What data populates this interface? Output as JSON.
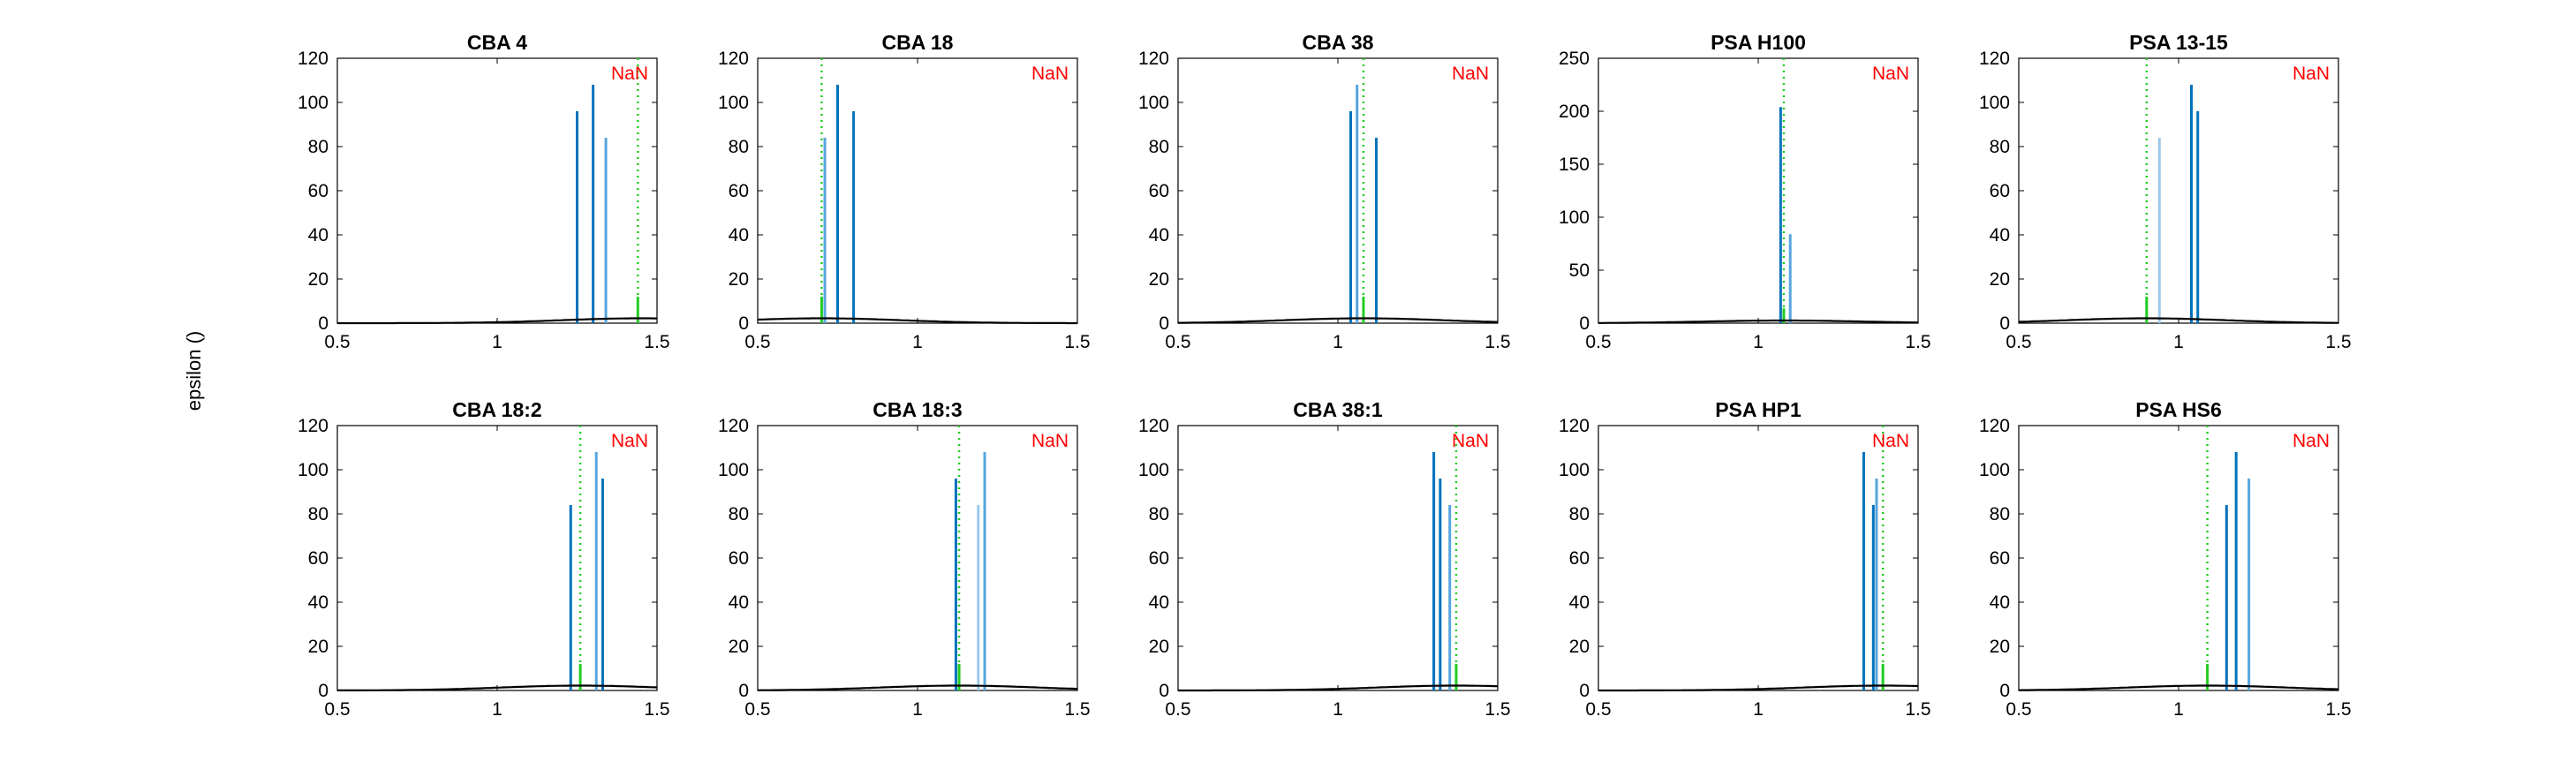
{
  "figure": {
    "ylabel": "epsilon ()",
    "colors": {
      "bar_dark": "#0072BD",
      "bar_light": "#56a5dd",
      "bar_pale": "#9cc8ea",
      "threshold_line": "#22cc22",
      "nan_text": "#ff0000",
      "curve": "#000000",
      "axes": "#000000"
    }
  },
  "chart_data": [
    {
      "type": "bar",
      "title": "CBA 4",
      "annotation": "NaN",
      "xlim": [
        0.5,
        1.5
      ],
      "ylim": [
        0,
        120
      ],
      "xticks": [
        0.5,
        1,
        1.5
      ],
      "xtick_labels": [
        "0.5",
        "1",
        "1.5"
      ],
      "yticks": [
        0,
        20,
        40,
        60,
        80,
        100,
        120
      ],
      "ytick_labels": [
        "0",
        "20",
        "40",
        "60",
        "80",
        "100",
        "120"
      ],
      "bars": [
        {
          "x": 1.25,
          "y": 96,
          "shade": "dark"
        },
        {
          "x": 1.3,
          "y": 108,
          "shade": "dark"
        },
        {
          "x": 1.34,
          "y": 84,
          "shade": "light"
        },
        {
          "x": 1.44,
          "y": 12,
          "shade": "green"
        }
      ],
      "threshold_x": 1.44,
      "curve_peak": 2.2,
      "curve_center": 1.45,
      "curve_width": 0.25
    },
    {
      "type": "bar",
      "title": "CBA 18",
      "annotation": "NaN",
      "xlim": [
        0.5,
        1.5
      ],
      "ylim": [
        0,
        120
      ],
      "xticks": [
        0.5,
        1,
        1.5
      ],
      "xtick_labels": [
        "0.5",
        "1",
        "1.5"
      ],
      "yticks": [
        0,
        20,
        40,
        60,
        80,
        100,
        120
      ],
      "ytick_labels": [
        "0",
        "20",
        "40",
        "60",
        "80",
        "100",
        "120"
      ],
      "bars": [
        {
          "x": 0.7,
          "y": 12,
          "shade": "green"
        },
        {
          "x": 0.71,
          "y": 84,
          "shade": "light"
        },
        {
          "x": 0.75,
          "y": 108,
          "shade": "dark"
        },
        {
          "x": 0.8,
          "y": 96,
          "shade": "dark"
        }
      ],
      "threshold_x": 0.7,
      "curve_peak": 2.2,
      "curve_center": 0.7,
      "curve_width": 0.25
    },
    {
      "type": "bar",
      "title": "CBA 38",
      "annotation": "NaN",
      "xlim": [
        0.5,
        1.5
      ],
      "ylim": [
        0,
        120
      ],
      "xticks": [
        0.5,
        1,
        1.5
      ],
      "xtick_labels": [
        "0.5",
        "1",
        "1.5"
      ],
      "yticks": [
        0,
        20,
        40,
        60,
        80,
        100,
        120
      ],
      "ytick_labels": [
        "0",
        "20",
        "40",
        "60",
        "80",
        "100",
        "120"
      ],
      "bars": [
        {
          "x": 1.04,
          "y": 96,
          "shade": "dark"
        },
        {
          "x": 1.06,
          "y": 108,
          "shade": "light"
        },
        {
          "x": 1.08,
          "y": 12,
          "shade": "green"
        },
        {
          "x": 1.12,
          "y": 84,
          "shade": "dark"
        }
      ],
      "threshold_x": 1.08,
      "curve_peak": 2.2,
      "curve_center": 1.08,
      "curve_width": 0.25
    },
    {
      "type": "bar",
      "title": "PSA H100",
      "annotation": "NaN",
      "xlim": [
        0.5,
        1.5
      ],
      "ylim": [
        0,
        250
      ],
      "xticks": [
        0.5,
        1,
        1.5
      ],
      "xtick_labels": [
        "0.5",
        "1",
        "1.5"
      ],
      "yticks": [
        0,
        50,
        100,
        150,
        200,
        250
      ],
      "ytick_labels": [
        "0",
        "50",
        "100",
        "150",
        "200",
        "250"
      ],
      "bars": [
        {
          "x": 1.07,
          "y": 204,
          "shade": "dark"
        },
        {
          "x": 1.08,
          "y": 14,
          "shade": "green"
        },
        {
          "x": 1.1,
          "y": 84,
          "shade": "light"
        }
      ],
      "threshold_x": 1.08,
      "curve_peak": 2.5,
      "curve_center": 1.08,
      "curve_width": 0.25
    },
    {
      "type": "bar",
      "title": "PSA 13-15",
      "annotation": "NaN",
      "xlim": [
        0.5,
        1.5
      ],
      "ylim": [
        0,
        120
      ],
      "xticks": [
        0.5,
        1,
        1.5
      ],
      "xtick_labels": [
        "0.5",
        "1",
        "1.5"
      ],
      "yticks": [
        0,
        20,
        40,
        60,
        80,
        100,
        120
      ],
      "ytick_labels": [
        "0",
        "20",
        "40",
        "60",
        "80",
        "100",
        "120"
      ],
      "bars": [
        {
          "x": 0.9,
          "y": 12,
          "shade": "green"
        },
        {
          "x": 0.94,
          "y": 84,
          "shade": "pale"
        },
        {
          "x": 1.04,
          "y": 108,
          "shade": "dark"
        },
        {
          "x": 1.06,
          "y": 96,
          "shade": "dark"
        }
      ],
      "threshold_x": 0.9,
      "curve_peak": 2.2,
      "curve_center": 0.9,
      "curve_width": 0.25
    },
    {
      "type": "bar",
      "title": "CBA 18:2",
      "annotation": "NaN",
      "xlim": [
        0.5,
        1.5
      ],
      "ylim": [
        0,
        120
      ],
      "xticks": [
        0.5,
        1,
        1.5
      ],
      "xtick_labels": [
        "0.5",
        "1",
        "1.5"
      ],
      "yticks": [
        0,
        20,
        40,
        60,
        80,
        100,
        120
      ],
      "ytick_labels": [
        "0",
        "20",
        "40",
        "60",
        "80",
        "100",
        "120"
      ],
      "bars": [
        {
          "x": 1.23,
          "y": 84,
          "shade": "dark"
        },
        {
          "x": 1.26,
          "y": 12,
          "shade": "green"
        },
        {
          "x": 1.31,
          "y": 108,
          "shade": "light"
        },
        {
          "x": 1.33,
          "y": 96,
          "shade": "dark"
        }
      ],
      "threshold_x": 1.26,
      "curve_peak": 2.2,
      "curve_center": 1.26,
      "curve_width": 0.25
    },
    {
      "type": "bar",
      "title": "CBA 18:3",
      "annotation": "NaN",
      "xlim": [
        0.5,
        1.5
      ],
      "ylim": [
        0,
        120
      ],
      "xticks": [
        0.5,
        1,
        1.5
      ],
      "xtick_labels": [
        "0.5",
        "1",
        "1.5"
      ],
      "yticks": [
        0,
        20,
        40,
        60,
        80,
        100,
        120
      ],
      "ytick_labels": [
        "0",
        "20",
        "40",
        "60",
        "80",
        "100",
        "120"
      ],
      "bars": [
        {
          "x": 1.12,
          "y": 96,
          "shade": "dark"
        },
        {
          "x": 1.13,
          "y": 12,
          "shade": "green"
        },
        {
          "x": 1.19,
          "y": 84,
          "shade": "pale"
        },
        {
          "x": 1.21,
          "y": 108,
          "shade": "light"
        }
      ],
      "threshold_x": 1.13,
      "curve_peak": 2.2,
      "curve_center": 1.13,
      "curve_width": 0.25
    },
    {
      "type": "bar",
      "title": "CBA 38:1",
      "annotation": "NaN",
      "xlim": [
        0.5,
        1.5
      ],
      "ylim": [
        0,
        120
      ],
      "xticks": [
        0.5,
        1,
        1.5
      ],
      "xtick_labels": [
        "0.5",
        "1",
        "1.5"
      ],
      "yticks": [
        0,
        20,
        40,
        60,
        80,
        100,
        120
      ],
      "ytick_labels": [
        "0",
        "20",
        "40",
        "60",
        "80",
        "100",
        "120"
      ],
      "bars": [
        {
          "x": 1.3,
          "y": 108,
          "shade": "dark"
        },
        {
          "x": 1.32,
          "y": 96,
          "shade": "dark"
        },
        {
          "x": 1.35,
          "y": 84,
          "shade": "light"
        },
        {
          "x": 1.37,
          "y": 12,
          "shade": "green"
        }
      ],
      "threshold_x": 1.37,
      "curve_peak": 2.2,
      "curve_center": 1.37,
      "curve_width": 0.25
    },
    {
      "type": "bar",
      "title": "PSA HP1",
      "annotation": "NaN",
      "xlim": [
        0.5,
        1.5
      ],
      "ylim": [
        0,
        120
      ],
      "xticks": [
        0.5,
        1,
        1.5
      ],
      "xtick_labels": [
        "0.5",
        "1",
        "1.5"
      ],
      "yticks": [
        0,
        20,
        40,
        60,
        80,
        100,
        120
      ],
      "ytick_labels": [
        "0",
        "20",
        "40",
        "60",
        "80",
        "100",
        "120"
      ],
      "bars": [
        {
          "x": 1.33,
          "y": 108,
          "shade": "dark"
        },
        {
          "x": 1.36,
          "y": 84,
          "shade": "dark"
        },
        {
          "x": 1.37,
          "y": 96,
          "shade": "light"
        },
        {
          "x": 1.39,
          "y": 12,
          "shade": "green"
        }
      ],
      "threshold_x": 1.39,
      "curve_peak": 2.2,
      "curve_center": 1.39,
      "curve_width": 0.25
    },
    {
      "type": "bar",
      "title": "PSA HS6",
      "annotation": "NaN",
      "xlim": [
        0.5,
        1.5
      ],
      "ylim": [
        0,
        120
      ],
      "xticks": [
        0.5,
        1,
        1.5
      ],
      "xtick_labels": [
        "0.5",
        "1",
        "1.5"
      ],
      "yticks": [
        0,
        20,
        40,
        60,
        80,
        100,
        120
      ],
      "ytick_labels": [
        "0",
        "20",
        "40",
        "60",
        "80",
        "100",
        "120"
      ],
      "bars": [
        {
          "x": 1.09,
          "y": 12,
          "shade": "green"
        },
        {
          "x": 1.15,
          "y": 84,
          "shade": "dark"
        },
        {
          "x": 1.18,
          "y": 108,
          "shade": "dark"
        },
        {
          "x": 1.22,
          "y": 96,
          "shade": "light"
        }
      ],
      "threshold_x": 1.09,
      "curve_peak": 2.2,
      "curve_center": 1.09,
      "curve_width": 0.25
    }
  ]
}
